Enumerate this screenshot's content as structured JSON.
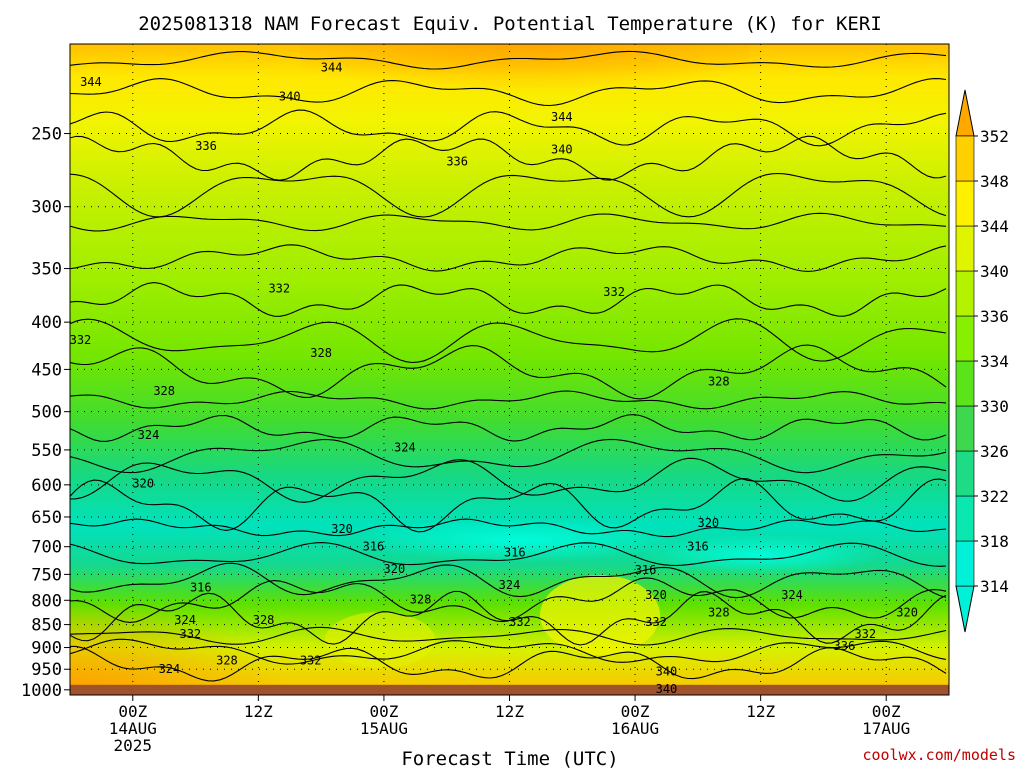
{
  "chart_data": {
    "type": "heatmap",
    "title": "2025081318 NAM Forecast Equiv. Potential Temperature (K) for KERI",
    "xlabel": "Forecast Time (UTC)",
    "ylabel": "",
    "credit": "coolwx.com/models",
    "y_axis": {
      "scale": "log",
      "reversed": true,
      "range": [
        1013,
        200
      ],
      "ticks": [
        250,
        300,
        350,
        400,
        450,
        500,
        550,
        600,
        650,
        700,
        750,
        800,
        850,
        900,
        950,
        1000
      ]
    },
    "x_axis": {
      "unit": "forecast hour",
      "range": [
        -6,
        78
      ],
      "ticks": [
        {
          "hour": 0,
          "lines": [
            "00Z",
            "14AUG",
            "2025"
          ]
        },
        {
          "hour": 12,
          "lines": [
            "12Z"
          ]
        },
        {
          "hour": 24,
          "lines": [
            "00Z",
            "15AUG"
          ]
        },
        {
          "hour": 36,
          "lines": [
            "12Z"
          ]
        },
        {
          "hour": 48,
          "lines": [
            "00Z",
            "16AUG"
          ]
        },
        {
          "hour": 60,
          "lines": [
            "12Z"
          ]
        },
        {
          "hour": 72,
          "lines": [
            "00Z",
            "17AUG"
          ]
        }
      ]
    },
    "grid": true,
    "colorbar": {
      "label_values": [
        314,
        318,
        322,
        326,
        330,
        334,
        336,
        340,
        344,
        348,
        352
      ],
      "colors": [
        "#00f0d8",
        "#0ae8b0",
        "#1edc86",
        "#3ed84e",
        "#5ce41a",
        "#86f000",
        "#b4f200",
        "#e0f400",
        "#fff000",
        "#ffd000",
        "#ffa800"
      ],
      "extend": "both"
    },
    "ground_color": "#a0522d",
    "contour_labels": [
      {
        "value": "344",
        "hour": -4,
        "pressure": 220
      },
      {
        "value": "344",
        "hour": 19,
        "pressure": 212
      },
      {
        "value": "340",
        "hour": 15,
        "pressure": 228
      },
      {
        "value": "344",
        "hour": 41,
        "pressure": 240
      },
      {
        "value": "340",
        "hour": 41,
        "pressure": 260
      },
      {
        "value": "336",
        "hour": 7,
        "pressure": 258
      },
      {
        "value": "336",
        "hour": 31,
        "pressure": 268
      },
      {
        "value": "332",
        "hour": 14,
        "pressure": 368
      },
      {
        "value": "332",
        "hour": 46,
        "pressure": 371
      },
      {
        "value": "332",
        "hour": -5,
        "pressure": 418
      },
      {
        "value": "328",
        "hour": 18,
        "pressure": 432
      },
      {
        "value": "328",
        "hour": 3,
        "pressure": 475
      },
      {
        "value": "328",
        "hour": 56,
        "pressure": 464
      },
      {
        "value": "324",
        "hour": 1.5,
        "pressure": 530
      },
      {
        "value": "324",
        "hour": 26,
        "pressure": 547
      },
      {
        "value": "320",
        "hour": 1,
        "pressure": 598
      },
      {
        "value": "320",
        "hour": 20,
        "pressure": 670
      },
      {
        "value": "320",
        "hour": 55,
        "pressure": 660
      },
      {
        "value": "316",
        "hour": 23,
        "pressure": 700
      },
      {
        "value": "316",
        "hour": 54,
        "pressure": 700
      },
      {
        "value": "316",
        "hour": 49,
        "pressure": 742
      },
      {
        "value": "316",
        "hour": 36.5,
        "pressure": 710
      },
      {
        "value": "316",
        "hour": 6.5,
        "pressure": 775
      },
      {
        "value": "320",
        "hour": 25,
        "pressure": 740
      },
      {
        "value": "324",
        "hour": 36,
        "pressure": 770
      },
      {
        "value": "324",
        "hour": 5,
        "pressure": 840
      },
      {
        "value": "324",
        "hour": 63,
        "pressure": 790
      },
      {
        "value": "320",
        "hour": 50,
        "pressure": 790
      },
      {
        "value": "320",
        "hour": 74,
        "pressure": 825
      },
      {
        "value": "328",
        "hour": 9,
        "pressure": 930
      },
      {
        "value": "328",
        "hour": 12.5,
        "pressure": 840
      },
      {
        "value": "328",
        "hour": 27.5,
        "pressure": 798
      },
      {
        "value": "328",
        "hour": 56,
        "pressure": 825
      },
      {
        "value": "332",
        "hour": 5.5,
        "pressure": 870
      },
      {
        "value": "332",
        "hour": 37,
        "pressure": 845
      },
      {
        "value": "332",
        "hour": 50,
        "pressure": 845
      },
      {
        "value": "332",
        "hour": 70,
        "pressure": 870
      },
      {
        "value": "332",
        "hour": 17,
        "pressure": 930
      },
      {
        "value": "324",
        "hour": 3.5,
        "pressure": 950
      },
      {
        "value": "336",
        "hour": 68,
        "pressure": 896
      },
      {
        "value": "340",
        "hour": 51,
        "pressure": 955
      },
      {
        "value": "340",
        "hour": 51,
        "pressure": 998
      }
    ]
  }
}
